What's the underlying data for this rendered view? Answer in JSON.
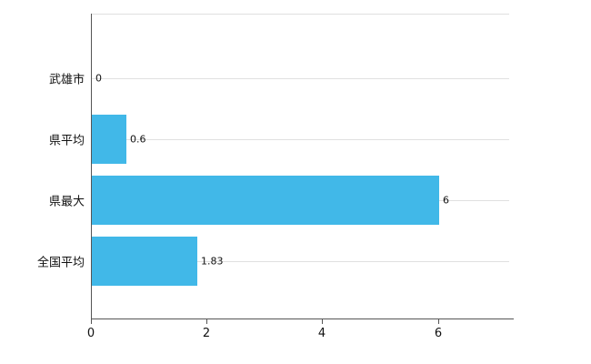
{
  "chart_data": {
    "type": "bar",
    "orientation": "horizontal",
    "categories": [
      "武雄市",
      "県平均",
      "県最大",
      "全国平均"
    ],
    "values": [
      0,
      0.6,
      6,
      1.83
    ],
    "value_labels": [
      "0",
      "0.6",
      "6",
      "1.83"
    ],
    "x_ticks": [
      0,
      2,
      4,
      6
    ],
    "x_tick_labels": [
      "0",
      "2",
      "4",
      "6"
    ],
    "xlim": [
      0,
      7.23
    ],
    "grid": true,
    "legend": false,
    "colors": {
      "bar": "#41b8e8",
      "gridline": "#e0e0e0",
      "axis": "#555555",
      "text": "#111111"
    }
  }
}
